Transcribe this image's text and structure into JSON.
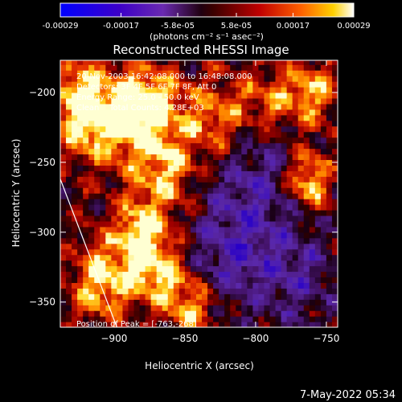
{
  "footer_timestamp": "7-May-2022 05:34",
  "chart_data": {
    "type": "heatmap",
    "title": "Reconstructed RHESSI Image",
    "xlabel": "Heliocentric X (arcsec)",
    "ylabel": "Heliocentric Y (arcsec)",
    "xlim": [
      -938,
      -742
    ],
    "ylim": [
      -368,
      -177
    ],
    "x_ticks": [
      -900,
      -850,
      -800,
      -750
    ],
    "y_ticks": [
      -200,
      -250,
      -300,
      -350
    ],
    "colorbar": {
      "range": [
        -0.00029,
        0.00029
      ],
      "tick_values": [
        -0.00029,
        -0.00017,
        -5.8e-05,
        5.8e-05,
        0.00017,
        0.00029
      ],
      "tick_labels": [
        "-0.00029",
        "-0.00017",
        "-5.8e-05",
        "5.8e-05",
        "0.00017",
        "0.00029"
      ],
      "units_label": "(photons cm⁻² s⁻¹ asec⁻²)"
    },
    "annotations": [
      "20-Nov-2003 16:42:08.000 to 16:48:08.000",
      "Detectors: 3F 4F 5F 6F 7F 8F, Att 0",
      "Energy Range: 25.0 - 50.0 keV",
      "Clean    Total Counts: 4.28E+03"
    ],
    "peak_label": "Position of Peak = [-763,-268]",
    "peak_position": [
      -763,
      -268
    ],
    "limb_line": [
      [
        -938,
        -262
      ],
      [
        -898,
        -368
      ]
    ],
    "features": [
      {
        "x": -880,
        "y": -205,
        "intensity": 0.95,
        "sx": 18,
        "sy": 18
      },
      {
        "x": -900,
        "y": -225,
        "intensity": 0.75,
        "sx": 20,
        "sy": 22
      },
      {
        "x": -865,
        "y": -255,
        "intensity": 0.8,
        "sx": 14,
        "sy": 20
      },
      {
        "x": -880,
        "y": -300,
        "intensity": 1.0,
        "sx": 14,
        "sy": 16
      },
      {
        "x": -870,
        "y": -330,
        "intensity": 0.9,
        "sx": 18,
        "sy": 14
      },
      {
        "x": -910,
        "y": -335,
        "intensity": 0.85,
        "sx": 14,
        "sy": 20
      },
      {
        "x": -925,
        "y": -205,
        "intensity": 0.9,
        "sx": 12,
        "sy": 22
      },
      {
        "x": -830,
        "y": -220,
        "intensity": 0.7,
        "sx": 18,
        "sy": 20
      },
      {
        "x": -790,
        "y": -205,
        "intensity": 0.6,
        "sx": 16,
        "sy": 16
      },
      {
        "x": -760,
        "y": -200,
        "intensity": 0.7,
        "sx": 12,
        "sy": 16
      },
      {
        "x": -763,
        "y": -262,
        "intensity": 1.0,
        "sx": 11,
        "sy": 14
      },
      {
        "x": -845,
        "y": -355,
        "intensity": 0.8,
        "sx": 14,
        "sy": 14
      },
      {
        "x": -800,
        "y": -265,
        "intensity": -0.5,
        "sx": 22,
        "sy": 35
      },
      {
        "x": -820,
        "y": -320,
        "intensity": -0.55,
        "sx": 22,
        "sy": 28
      },
      {
        "x": -770,
        "y": -330,
        "intensity": -0.45,
        "sx": 18,
        "sy": 25
      }
    ]
  }
}
